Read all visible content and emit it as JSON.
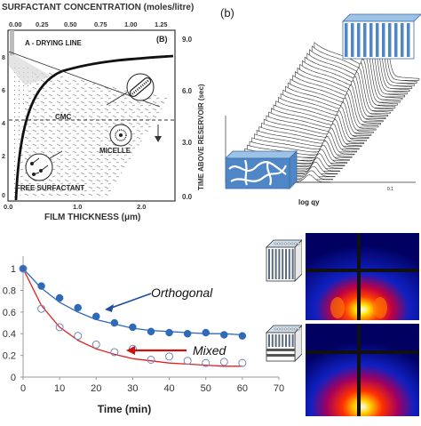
{
  "panel_a": {
    "top_axis_title": "SURFACTANT CONCENTRATION (moles/litre)",
    "top_ticks": [
      "0.00",
      "0.25",
      "0.50",
      "0.75",
      "1.00",
      "1.25"
    ],
    "right_ticks": [
      "9.0",
      "6.0",
      "3.0",
      "0.0"
    ],
    "left_ticks": [
      "8",
      "6",
      "4",
      "2",
      "0"
    ],
    "panel_letter": "(B)",
    "drying_line_label": "A - DRYING LINE",
    "cmc_label": "CMC",
    "micelle_label": "MICELLE",
    "free_surfactant_label": "FREE SURFACTANT",
    "xlabel": "FILM THICKNESS (μm)",
    "ylabel_right": "TIME ABOVE RESERVOIR (sec)",
    "x_ticks": [
      "0.0",
      "1.0",
      "2.0"
    ]
  },
  "panel_b": {
    "label": "(b)",
    "xlabel": "log qy",
    "tick": "0.1"
  },
  "panel_c": {
    "orthogonal_label": "Orthogonal",
    "mixed_label": "Mixed",
    "arrow_color": "#1f4e9c",
    "mixed_arrow_color": "#cc1111"
  },
  "chart_data": {
    "type": "scatter",
    "xlabel": "Time (min)",
    "ylabel": "",
    "xlim": [
      0,
      70
    ],
    "ylim": [
      0,
      1.05
    ],
    "x_ticks": [
      0,
      10,
      20,
      30,
      40,
      50,
      60,
      70
    ],
    "y_ticks": [
      0,
      0.2,
      0.4,
      0.6,
      0.8,
      1
    ],
    "grid": false,
    "series": [
      {
        "name": "Orthogonal",
        "color": "#2e6ab8",
        "marker": "filled-circle",
        "x": [
          0,
          5,
          10,
          15,
          20,
          25,
          30,
          35,
          40,
          45,
          50,
          55,
          60
        ],
        "y": [
          1.0,
          0.84,
          0.73,
          0.64,
          0.56,
          0.5,
          0.46,
          0.42,
          0.41,
          0.4,
          0.41,
          0.39,
          0.38
        ],
        "fit": [
          1.0,
          0.82,
          0.69,
          0.6,
          0.53,
          0.49,
          0.45,
          0.43,
          0.42,
          0.41,
          0.4,
          0.4,
          0.39
        ]
      },
      {
        "name": "Mixed",
        "color": "#6f86b8",
        "fit_color": "#e02020",
        "marker": "open-circle",
        "x": [
          0,
          5,
          10,
          15,
          20,
          25,
          30,
          35,
          40,
          45,
          50,
          55,
          60
        ],
        "y": [
          1.0,
          0.63,
          0.46,
          0.38,
          0.3,
          0.23,
          0.26,
          0.16,
          0.19,
          0.15,
          0.13,
          0.14,
          0.13
        ],
        "fit": [
          1.0,
          0.66,
          0.46,
          0.34,
          0.26,
          0.21,
          0.17,
          0.15,
          0.13,
          0.12,
          0.11,
          0.1,
          0.1
        ]
      }
    ]
  }
}
